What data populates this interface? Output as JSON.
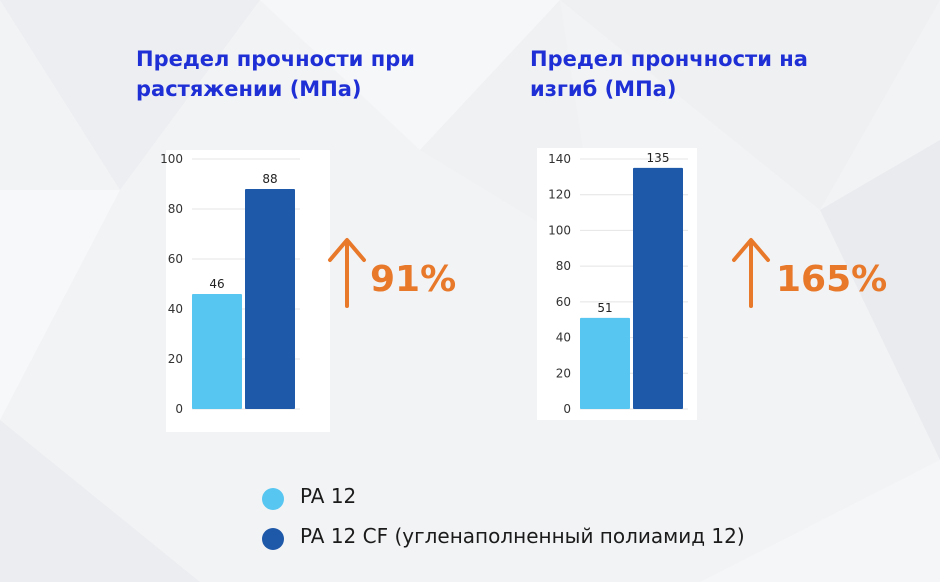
{
  "colors": {
    "pa12": "#57c6f1",
    "pa12cf": "#1e58a8",
    "accent": "#e8782a",
    "title": "#1f2fd6"
  },
  "legend": [
    {
      "label": "PA 12",
      "color": "#57c6f1"
    },
    {
      "label": "PA 12 CF (угленаполненный полиамид 12)",
      "color": "#1e58a8"
    }
  ],
  "chart_data": [
    {
      "type": "bar",
      "title": "Предел прочности при растяжении (МПа)",
      "categories": [
        "PA 12",
        "PA 12 CF"
      ],
      "values": [
        46,
        88
      ],
      "ylim": [
        0,
        100
      ],
      "yticks": [
        0,
        20,
        40,
        60,
        80,
        100
      ],
      "increase_label": "91%",
      "grid": true
    },
    {
      "type": "bar",
      "title": "Предел прончности на изгиб (МПа)",
      "categories": [
        "PA 12",
        "PA 12 CF"
      ],
      "values": [
        51,
        135
      ],
      "ylim": [
        0,
        140
      ],
      "yticks": [
        0,
        20,
        40,
        60,
        80,
        100,
        120,
        140
      ],
      "increase_label": "165%",
      "grid": true
    }
  ]
}
